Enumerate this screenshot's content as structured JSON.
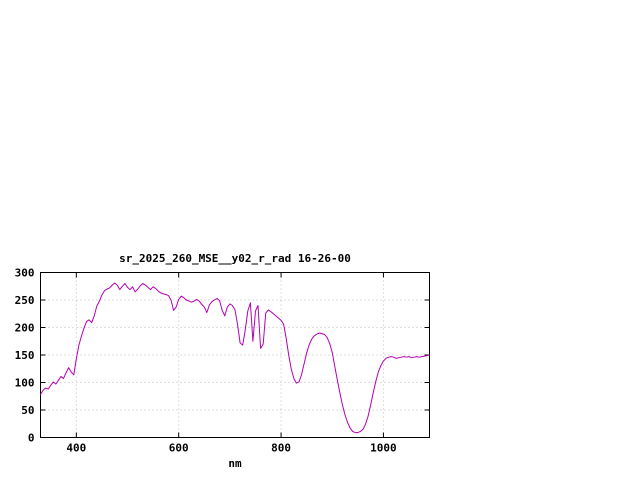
{
  "page": {
    "background": "#ffffff"
  },
  "chart_data": {
    "type": "line",
    "title": "sr_2025_260_MSE__y02_r_rad 16-26-00",
    "xlabel": "nm",
    "ylabel": "",
    "xlim": [
      330,
      1090
    ],
    "ylim": [
      0,
      300
    ],
    "xticks": [
      400,
      600,
      800,
      1000
    ],
    "yticks": [
      0,
      50,
      100,
      150,
      200,
      250,
      300
    ],
    "grid": true,
    "grid_style": "dotted",
    "legend_position": "none",
    "line_color": "#b400b4",
    "series": [
      {
        "name": "sr_2025_260_MSE__y02_r_rad",
        "color": "#b400b4",
        "points": [
          [
            330,
            78
          ],
          [
            335,
            86
          ],
          [
            340,
            90
          ],
          [
            345,
            88
          ],
          [
            350,
            95
          ],
          [
            355,
            101
          ],
          [
            360,
            97
          ],
          [
            365,
            104
          ],
          [
            370,
            111
          ],
          [
            375,
            107
          ],
          [
            380,
            118
          ],
          [
            385,
            127
          ],
          [
            390,
            119
          ],
          [
            395,
            114
          ],
          [
            400,
            143
          ],
          [
            405,
            168
          ],
          [
            410,
            184
          ],
          [
            415,
            199
          ],
          [
            420,
            211
          ],
          [
            425,
            214
          ],
          [
            430,
            209
          ],
          [
            435,
            221
          ],
          [
            440,
            239
          ],
          [
            445,
            248
          ],
          [
            450,
            259
          ],
          [
            455,
            267
          ],
          [
            460,
            270
          ],
          [
            465,
            272
          ],
          [
            470,
            277
          ],
          [
            475,
            281
          ],
          [
            480,
            277
          ],
          [
            485,
            269
          ],
          [
            490,
            275
          ],
          [
            495,
            280
          ],
          [
            500,
            273
          ],
          [
            505,
            269
          ],
          [
            510,
            274
          ],
          [
            515,
            265
          ],
          [
            520,
            270
          ],
          [
            525,
            276
          ],
          [
            530,
            280
          ],
          [
            535,
            277
          ],
          [
            540,
            273
          ],
          [
            545,
            269
          ],
          [
            550,
            274
          ],
          [
            555,
            271
          ],
          [
            560,
            266
          ],
          [
            565,
            263
          ],
          [
            570,
            261
          ],
          [
            575,
            260
          ],
          [
            580,
            258
          ],
          [
            585,
            250
          ],
          [
            590,
            231
          ],
          [
            595,
            237
          ],
          [
            600,
            251
          ],
          [
            605,
            257
          ],
          [
            610,
            254
          ],
          [
            615,
            250
          ],
          [
            620,
            248
          ],
          [
            625,
            246
          ],
          [
            630,
            248
          ],
          [
            635,
            251
          ],
          [
            640,
            248
          ],
          [
            645,
            242
          ],
          [
            650,
            237
          ],
          [
            655,
            227
          ],
          [
            660,
            241
          ],
          [
            665,
            247
          ],
          [
            670,
            250
          ],
          [
            675,
            253
          ],
          [
            680,
            249
          ],
          [
            685,
            231
          ],
          [
            690,
            221
          ],
          [
            695,
            237
          ],
          [
            700,
            243
          ],
          [
            705,
            240
          ],
          [
            710,
            232
          ],
          [
            715,
            205
          ],
          [
            720,
            172
          ],
          [
            725,
            168
          ],
          [
            730,
            195
          ],
          [
            735,
            230
          ],
          [
            740,
            245
          ],
          [
            745,
            175
          ],
          [
            750,
            230
          ],
          [
            755,
            240
          ],
          [
            760,
            162
          ],
          [
            765,
            170
          ],
          [
            770,
            226
          ],
          [
            775,
            232
          ],
          [
            780,
            229
          ],
          [
            785,
            225
          ],
          [
            790,
            221
          ],
          [
            795,
            217
          ],
          [
            800,
            213
          ],
          [
            805,
            206
          ],
          [
            810,
            180
          ],
          [
            815,
            150
          ],
          [
            820,
            124
          ],
          [
            825,
            107
          ],
          [
            830,
            99
          ],
          [
            835,
            101
          ],
          [
            840,
            114
          ],
          [
            845,
            134
          ],
          [
            850,
            154
          ],
          [
            855,
            169
          ],
          [
            860,
            179
          ],
          [
            865,
            185
          ],
          [
            870,
            188
          ],
          [
            875,
            190
          ],
          [
            880,
            189
          ],
          [
            885,
            187
          ],
          [
            890,
            182
          ],
          [
            895,
            171
          ],
          [
            900,
            154
          ],
          [
            905,
            129
          ],
          [
            910,
            104
          ],
          [
            915,
            81
          ],
          [
            920,
            59
          ],
          [
            925,
            41
          ],
          [
            930,
            27
          ],
          [
            935,
            17
          ],
          [
            940,
            11
          ],
          [
            945,
            9
          ],
          [
            950,
            9
          ],
          [
            955,
            11
          ],
          [
            960,
            15
          ],
          [
            965,
            24
          ],
          [
            970,
            39
          ],
          [
            975,
            59
          ],
          [
            980,
            81
          ],
          [
            985,
            102
          ],
          [
            990,
            119
          ],
          [
            995,
            131
          ],
          [
            1000,
            139
          ],
          [
            1005,
            144
          ],
          [
            1010,
            146
          ],
          [
            1015,
            147
          ],
          [
            1020,
            146
          ],
          [
            1025,
            144
          ],
          [
            1030,
            145
          ],
          [
            1035,
            146
          ],
          [
            1040,
            147
          ],
          [
            1045,
            146
          ],
          [
            1050,
            147
          ],
          [
            1055,
            145
          ],
          [
            1060,
            146
          ],
          [
            1065,
            147
          ],
          [
            1070,
            146
          ],
          [
            1075,
            147
          ],
          [
            1080,
            148
          ],
          [
            1085,
            149
          ],
          [
            1090,
            150
          ]
        ]
      }
    ]
  }
}
